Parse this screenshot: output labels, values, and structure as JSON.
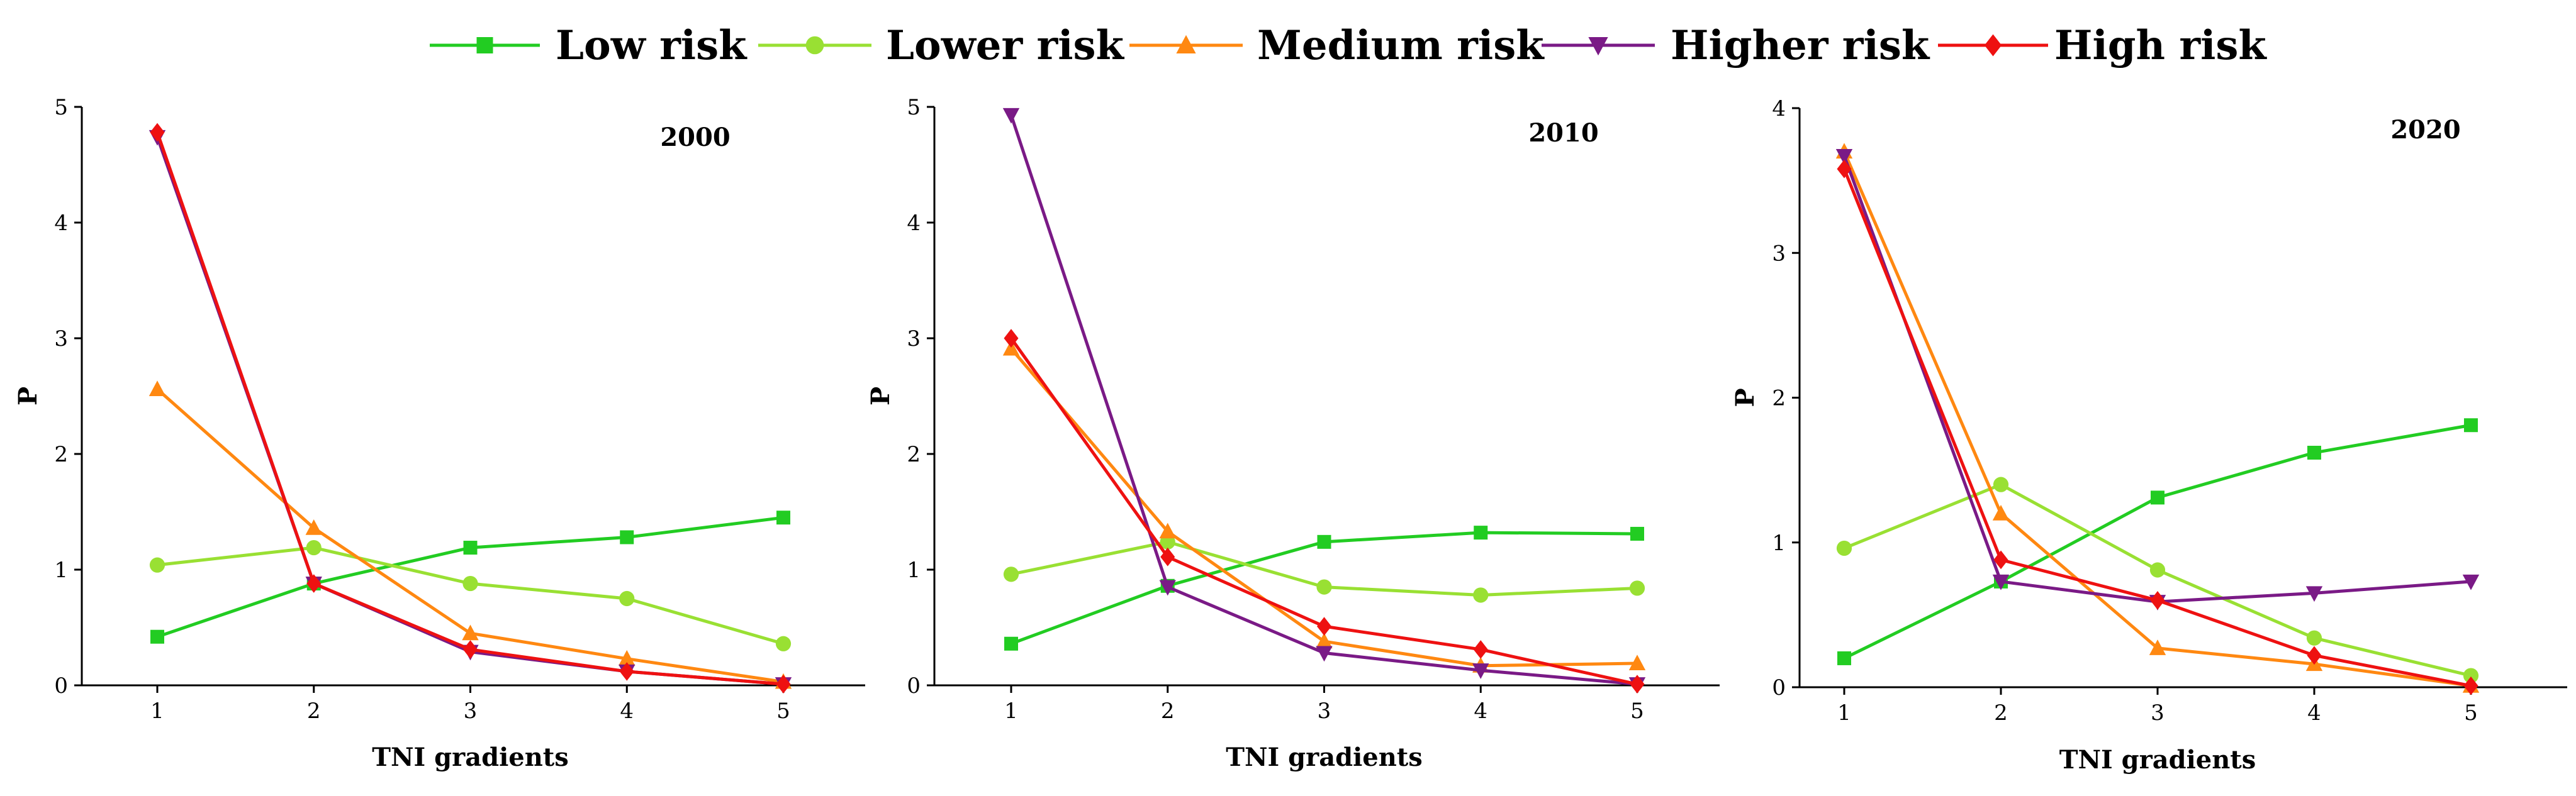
{
  "legend": {
    "placement": "top-center",
    "items": [
      {
        "name": "Low risk",
        "color": "#22cc22",
        "marker": "square"
      },
      {
        "name": "Lower risk",
        "color": "#99e033",
        "marker": "circle"
      },
      {
        "name": "Medium risk",
        "color": "#ff8811",
        "marker": "triangle-up"
      },
      {
        "name": "Higher risk",
        "color": "#7a1a86",
        "marker": "triangle-down"
      },
      {
        "name": "High risk",
        "color": "#ee1111",
        "marker": "diamond"
      }
    ]
  },
  "chart_data": [
    {
      "type": "line",
      "annotation": "2000",
      "xlabel": "TNI gradients",
      "ylabel": "P",
      "x": [
        1,
        2,
        3,
        4,
        5
      ],
      "xlim": [
        0.5,
        5.5
      ],
      "ylim": [
        0,
        5
      ],
      "yticks": [
        0,
        1,
        2,
        3,
        4,
        5
      ],
      "grid": false,
      "series": [
        {
          "name": "Low risk",
          "values": [
            0.42,
            0.88,
            1.19,
            1.28,
            1.45
          ]
        },
        {
          "name": "Lower risk",
          "values": [
            1.04,
            1.19,
            0.88,
            0.75,
            0.36
          ]
        },
        {
          "name": "Medium risk",
          "values": [
            2.56,
            1.36,
            0.45,
            0.23,
            0.03
          ]
        },
        {
          "name": "Higher risk",
          "values": [
            4.74,
            0.88,
            0.29,
            0.12,
            0.01
          ]
        },
        {
          "name": "High risk",
          "values": [
            4.78,
            0.88,
            0.31,
            0.12,
            0.01
          ]
        }
      ]
    },
    {
      "type": "line",
      "annotation": "2010",
      "xlabel": "TNI gradients",
      "ylabel": "P",
      "x": [
        1,
        2,
        3,
        4,
        5
      ],
      "xlim": [
        0.5,
        5.5
      ],
      "ylim": [
        0,
        5
      ],
      "yticks": [
        0,
        1,
        2,
        3,
        4,
        5
      ],
      "grid": false,
      "series": [
        {
          "name": "Low risk",
          "values": [
            0.36,
            0.86,
            1.24,
            1.32,
            1.31
          ]
        },
        {
          "name": "Lower risk",
          "values": [
            0.96,
            1.24,
            0.85,
            0.78,
            0.84
          ]
        },
        {
          "name": "Medium risk",
          "values": [
            2.91,
            1.33,
            0.38,
            0.17,
            0.19
          ]
        },
        {
          "name": "Higher risk",
          "values": [
            4.93,
            0.85,
            0.28,
            0.13,
            0.01
          ]
        },
        {
          "name": "High risk",
          "values": [
            3.0,
            1.11,
            0.51,
            0.31,
            0.01
          ]
        }
      ]
    },
    {
      "type": "line",
      "annotation": "2020",
      "xlabel": "TNI gradients",
      "ylabel": "P",
      "x": [
        1,
        2,
        3,
        4,
        5
      ],
      "xlim": [
        0.5,
        5.5
      ],
      "ylim": [
        0,
        4
      ],
      "yticks": [
        0,
        1,
        2,
        3,
        4
      ],
      "grid": false,
      "series": [
        {
          "name": "Low risk",
          "values": [
            0.2,
            0.73,
            1.31,
            1.62,
            1.81
          ]
        },
        {
          "name": "Lower risk",
          "values": [
            0.96,
            1.4,
            0.81,
            0.34,
            0.08
          ]
        },
        {
          "name": "Medium risk",
          "values": [
            3.7,
            1.2,
            0.27,
            0.16,
            0.01
          ]
        },
        {
          "name": "Higher risk",
          "values": [
            3.67,
            0.73,
            0.59,
            0.65,
            0.73
          ]
        },
        {
          "name": "High risk",
          "values": [
            3.58,
            0.88,
            0.6,
            0.22,
            0.01
          ]
        }
      ]
    }
  ]
}
